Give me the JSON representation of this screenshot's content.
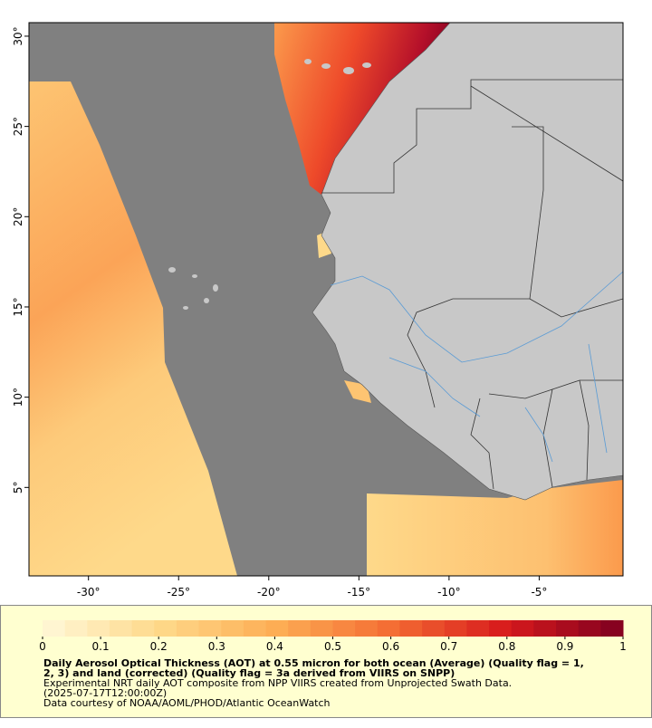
{
  "map": {
    "xlim": [
      -33.3,
      -0.35
    ],
    "ylim": [
      0.1,
      30.75
    ],
    "xticks": [
      {
        "value": -30,
        "label": "-30°"
      },
      {
        "value": -25,
        "label": "-25°"
      },
      {
        "value": -20,
        "label": "-20°"
      },
      {
        "value": -15,
        "label": "-15°"
      },
      {
        "value": -10,
        "label": "-10°"
      },
      {
        "value": -5,
        "label": "-5°"
      }
    ],
    "yticks": [
      {
        "value": 30,
        "label": "30°"
      },
      {
        "value": 25,
        "label": "25°"
      },
      {
        "value": 20,
        "label": "20°"
      },
      {
        "value": 15,
        "label": "15°"
      },
      {
        "value": 10,
        "label": "10°"
      },
      {
        "value": 5,
        "label": "5°"
      }
    ]
  },
  "colorbar": {
    "range": [
      0,
      1
    ],
    "ticks": [
      0,
      0.1,
      0.2,
      0.3,
      0.4,
      0.5,
      0.6,
      0.7,
      0.8,
      0.9,
      1
    ],
    "colors": [
      "#fff8d8",
      "#fed98a",
      "#fdae55",
      "#f46d33",
      "#d7191c",
      "#7f0020"
    ]
  },
  "caption": {
    "bold": [
      "Daily Aerosol Optical Thickness (AOT) at 0.55 micron for both ocean (Average) (Quality flag = 1,",
      "2, 3) and land (corrected) (Quality flag = 3a derived from VIIRS on SNPP)"
    ],
    "lines": [
      "Experimental NRT daily AOT composite from NPP VIIRS created from Unprojected Swath Data.",
      "(2025-07-17T12:00:00Z)",
      "Data courtesy of NOAA/AOML/PHOD/Atlantic OceanWatch"
    ]
  }
}
